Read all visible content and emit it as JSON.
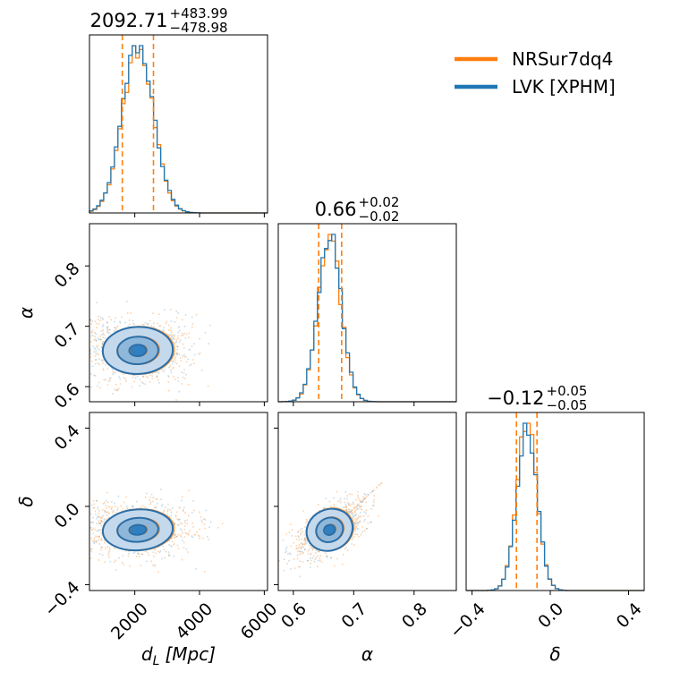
{
  "chart_data": {
    "type": "corner",
    "colors": {
      "nrsur": "#ff7f0e",
      "lvk": "#1f77b4",
      "fill_light": "#c5d9ec",
      "fill_mid": "#8fb7da",
      "fill_dark": "#2f7fc1"
    },
    "legend": {
      "placement": "top-right",
      "entries": [
        {
          "name": "NRSur7dq4",
          "color": "#ff7f0e"
        },
        {
          "name": "LVK [XPHM]",
          "color": "#1f77b4"
        }
      ]
    },
    "parameters": [
      {
        "key": "dL",
        "axis_label": "d_L [Mpc]",
        "label_main": "d",
        "label_sub": "L",
        "label_unit": "[Mpc]",
        "range": [
          600,
          6100
        ],
        "ticks": [
          2000,
          4000,
          6000
        ],
        "tick_labels": [
          "2000",
          "4000",
          "6000"
        ],
        "median": 2092.71,
        "title_main": "2092.71",
        "title_sup": "+483.99",
        "title_sub": "−478.98",
        "quantiles": [
          1613.73,
          2576.7
        ],
        "sigma": 480
      },
      {
        "key": "alpha",
        "axis_label": "α",
        "range": [
          0.575,
          0.87
        ],
        "ticks": [
          0.6,
          0.7,
          0.8
        ],
        "tick_labels": [
          "0.6",
          "0.7",
          "0.8"
        ],
        "median": 0.66,
        "title_main": "0.66",
        "title_sup": "+0.02",
        "title_sub": "−0.02",
        "quantiles": [
          0.642,
          0.68
        ],
        "sigma": 0.019
      },
      {
        "key": "delta",
        "axis_label": "δ",
        "range": [
          -0.43,
          0.48
        ],
        "ticks": [
          -0.4,
          0.0,
          0.4
        ],
        "tick_labels": [
          "−0.4",
          "0.0",
          "0.4"
        ],
        "median": -0.12,
        "title_main": "−0.12",
        "title_sup": "+0.05",
        "title_sub": "−0.05",
        "quantiles": [
          -0.173,
          -0.068
        ],
        "sigma": 0.051
      }
    ],
    "ylim_dL_alpha": [
      0.575,
      0.87
    ],
    "ylim_delta": [
      -0.43,
      0.48
    ]
  }
}
